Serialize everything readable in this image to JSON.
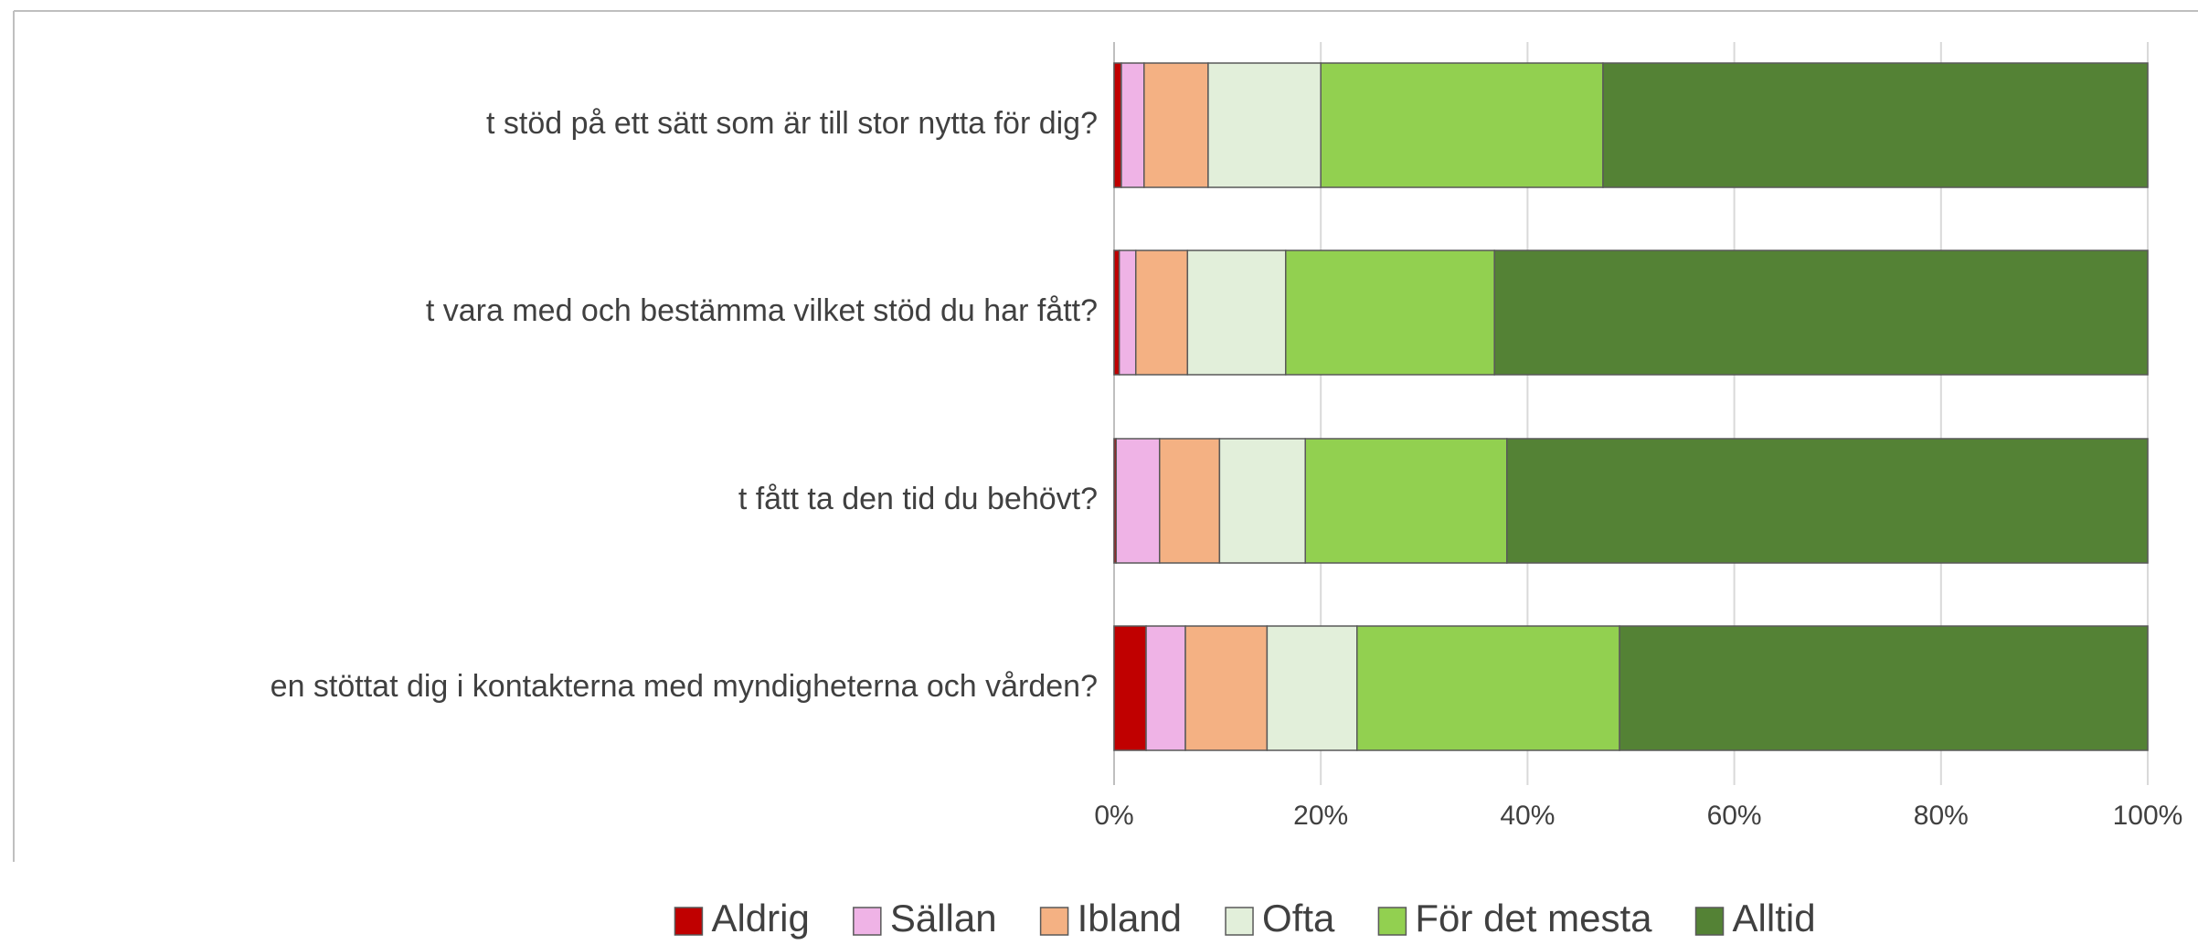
{
  "chart_data": {
    "type": "stacked_barh",
    "categories": [
      "t stöd på ett sätt som är till stor nytta för dig?",
      "t vara med och bestämma vilket stöd du har fått?",
      "t fått ta den tid du behövt?",
      "en stöttat dig  i kontakterna med myndigheterna och vården?"
    ],
    "series": [
      {
        "name": "Aldrig",
        "color": "#c00000",
        "values": [
          0.7,
          0.5,
          0.2,
          3.1
        ]
      },
      {
        "name": "Sällan",
        "color": "#efb3e6",
        "values": [
          2.2,
          1.6,
          4.2,
          3.8
        ]
      },
      {
        "name": "Ibland",
        "color": "#f4b183",
        "values": [
          6.2,
          5.0,
          5.8,
          7.9
        ]
      },
      {
        "name": "Ofta",
        "color": "#e2efda",
        "values": [
          10.9,
          9.5,
          8.3,
          8.7
        ]
      },
      {
        "name": "För det mesta",
        "color": "#92d050",
        "values": [
          27.3,
          20.2,
          19.5,
          25.4
        ]
      },
      {
        "name": "Alltid",
        "color": "#548235",
        "values": [
          52.7,
          63.2,
          62.0,
          51.1
        ]
      }
    ],
    "xlim": [
      0,
      100
    ],
    "xticks": [
      {
        "value": 0,
        "label": "0%"
      },
      {
        "value": 20,
        "label": "20%"
      },
      {
        "value": 40,
        "label": "40%"
      },
      {
        "value": 60,
        "label": "60%"
      },
      {
        "value": 80,
        "label": "80%"
      },
      {
        "value": 100,
        "label": "100%"
      }
    ],
    "grid": true,
    "legend": "bottom"
  }
}
